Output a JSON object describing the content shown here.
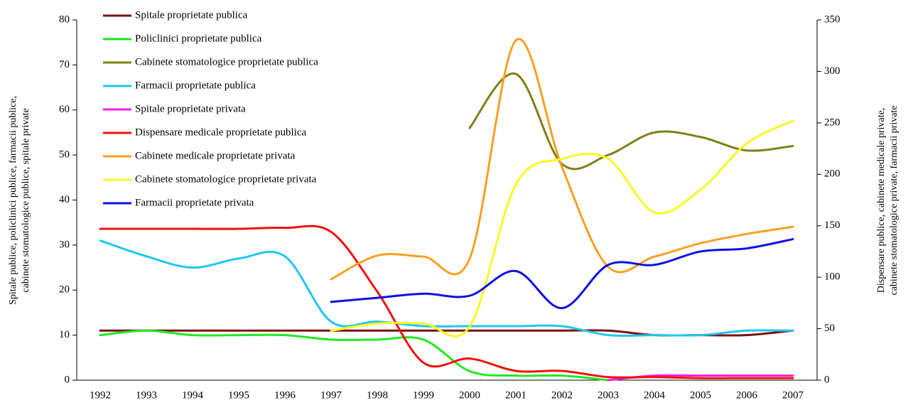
{
  "chart_data": {
    "type": "line",
    "y_label": "Spitale publice, policlinici publice, farmacii publice, cabinete stomatologice publice, spitale private",
    "y2_label": "Dispensare publice, cabinete medicale private, cabinete stomatologice private, farmacii private",
    "categories": [
      "1992",
      "1993",
      "1994",
      "1995",
      "1996",
      "1997",
      "1998",
      "1999",
      "2000",
      "2001",
      "2002",
      "2003",
      "2004",
      "2005",
      "2006",
      "2007"
    ],
    "ylim": [
      0,
      80
    ],
    "yticks": [
      0,
      10,
      20,
      30,
      40,
      50,
      60,
      70,
      80
    ],
    "y2lim": [
      0,
      350
    ],
    "y2ticks": [
      0,
      50,
      100,
      150,
      200,
      250,
      300,
      350
    ],
    "legend": "upper left",
    "series": [
      {
        "name": "Spitale proprietate publica",
        "color": "#7b1010",
        "values": [
          11,
          11,
          11,
          11,
          11,
          11,
          11,
          11,
          11,
          11,
          11,
          11,
          10,
          10,
          10,
          11
        ]
      },
      {
        "name": "Policlinici proprietate publica",
        "color": "#22e822",
        "values": [
          10,
          11,
          10,
          10,
          10,
          9,
          9,
          9,
          2,
          1,
          1,
          0,
          null,
          null,
          null,
          null
        ]
      },
      {
        "name": "Cabinete stomatologice proprietate publica",
        "color": "#808018",
        "values": [
          null,
          null,
          null,
          null,
          null,
          null,
          null,
          null,
          56,
          68,
          48,
          50,
          55,
          54,
          51,
          52
        ]
      },
      {
        "name": "Farmacii proprietate publica",
        "color": "#1ec8f0",
        "values": [
          31,
          27.5,
          25,
          27,
          27.5,
          13,
          13,
          12,
          12,
          12,
          12,
          10,
          10,
          10,
          11,
          11
        ]
      },
      {
        "name": "Spitale proprietate privata",
        "color": "#f020d8",
        "values": [
          null,
          null,
          null,
          null,
          null,
          null,
          null,
          null,
          null,
          null,
          null,
          0,
          1,
          1,
          1,
          1
        ]
      },
      {
        "name": "Dispensare medicale proprietate publica",
        "color": "#f01010",
        "axis": "y2",
        "values": [
          147,
          147,
          147,
          147,
          148,
          144,
          86,
          17,
          21,
          9,
          9,
          3,
          3,
          2,
          2,
          2
        ]
      },
      {
        "name": "Cabinete medicale proprietate privata",
        "color": "#f8a020",
        "axis": "y2",
        "values": [
          null,
          null,
          null,
          null,
          null,
          98,
          121,
          120,
          118,
          330,
          207,
          110,
          120,
          133,
          142,
          149
        ]
      },
      {
        "name": "Cabinete stomatologice proprietate privata",
        "color": "#f8f820",
        "axis": "y2",
        "values": [
          null,
          null,
          null,
          null,
          null,
          48,
          55,
          55,
          52,
          190,
          215,
          215,
          163,
          185,
          230,
          252
        ]
      },
      {
        "name": "Farmacii proprietate privata",
        "color": "#1010e0",
        "axis": "y2",
        "values": [
          null,
          null,
          null,
          null,
          null,
          76,
          80,
          84,
          82,
          106,
          70,
          112,
          112,
          125,
          128,
          137
        ]
      }
    ]
  }
}
